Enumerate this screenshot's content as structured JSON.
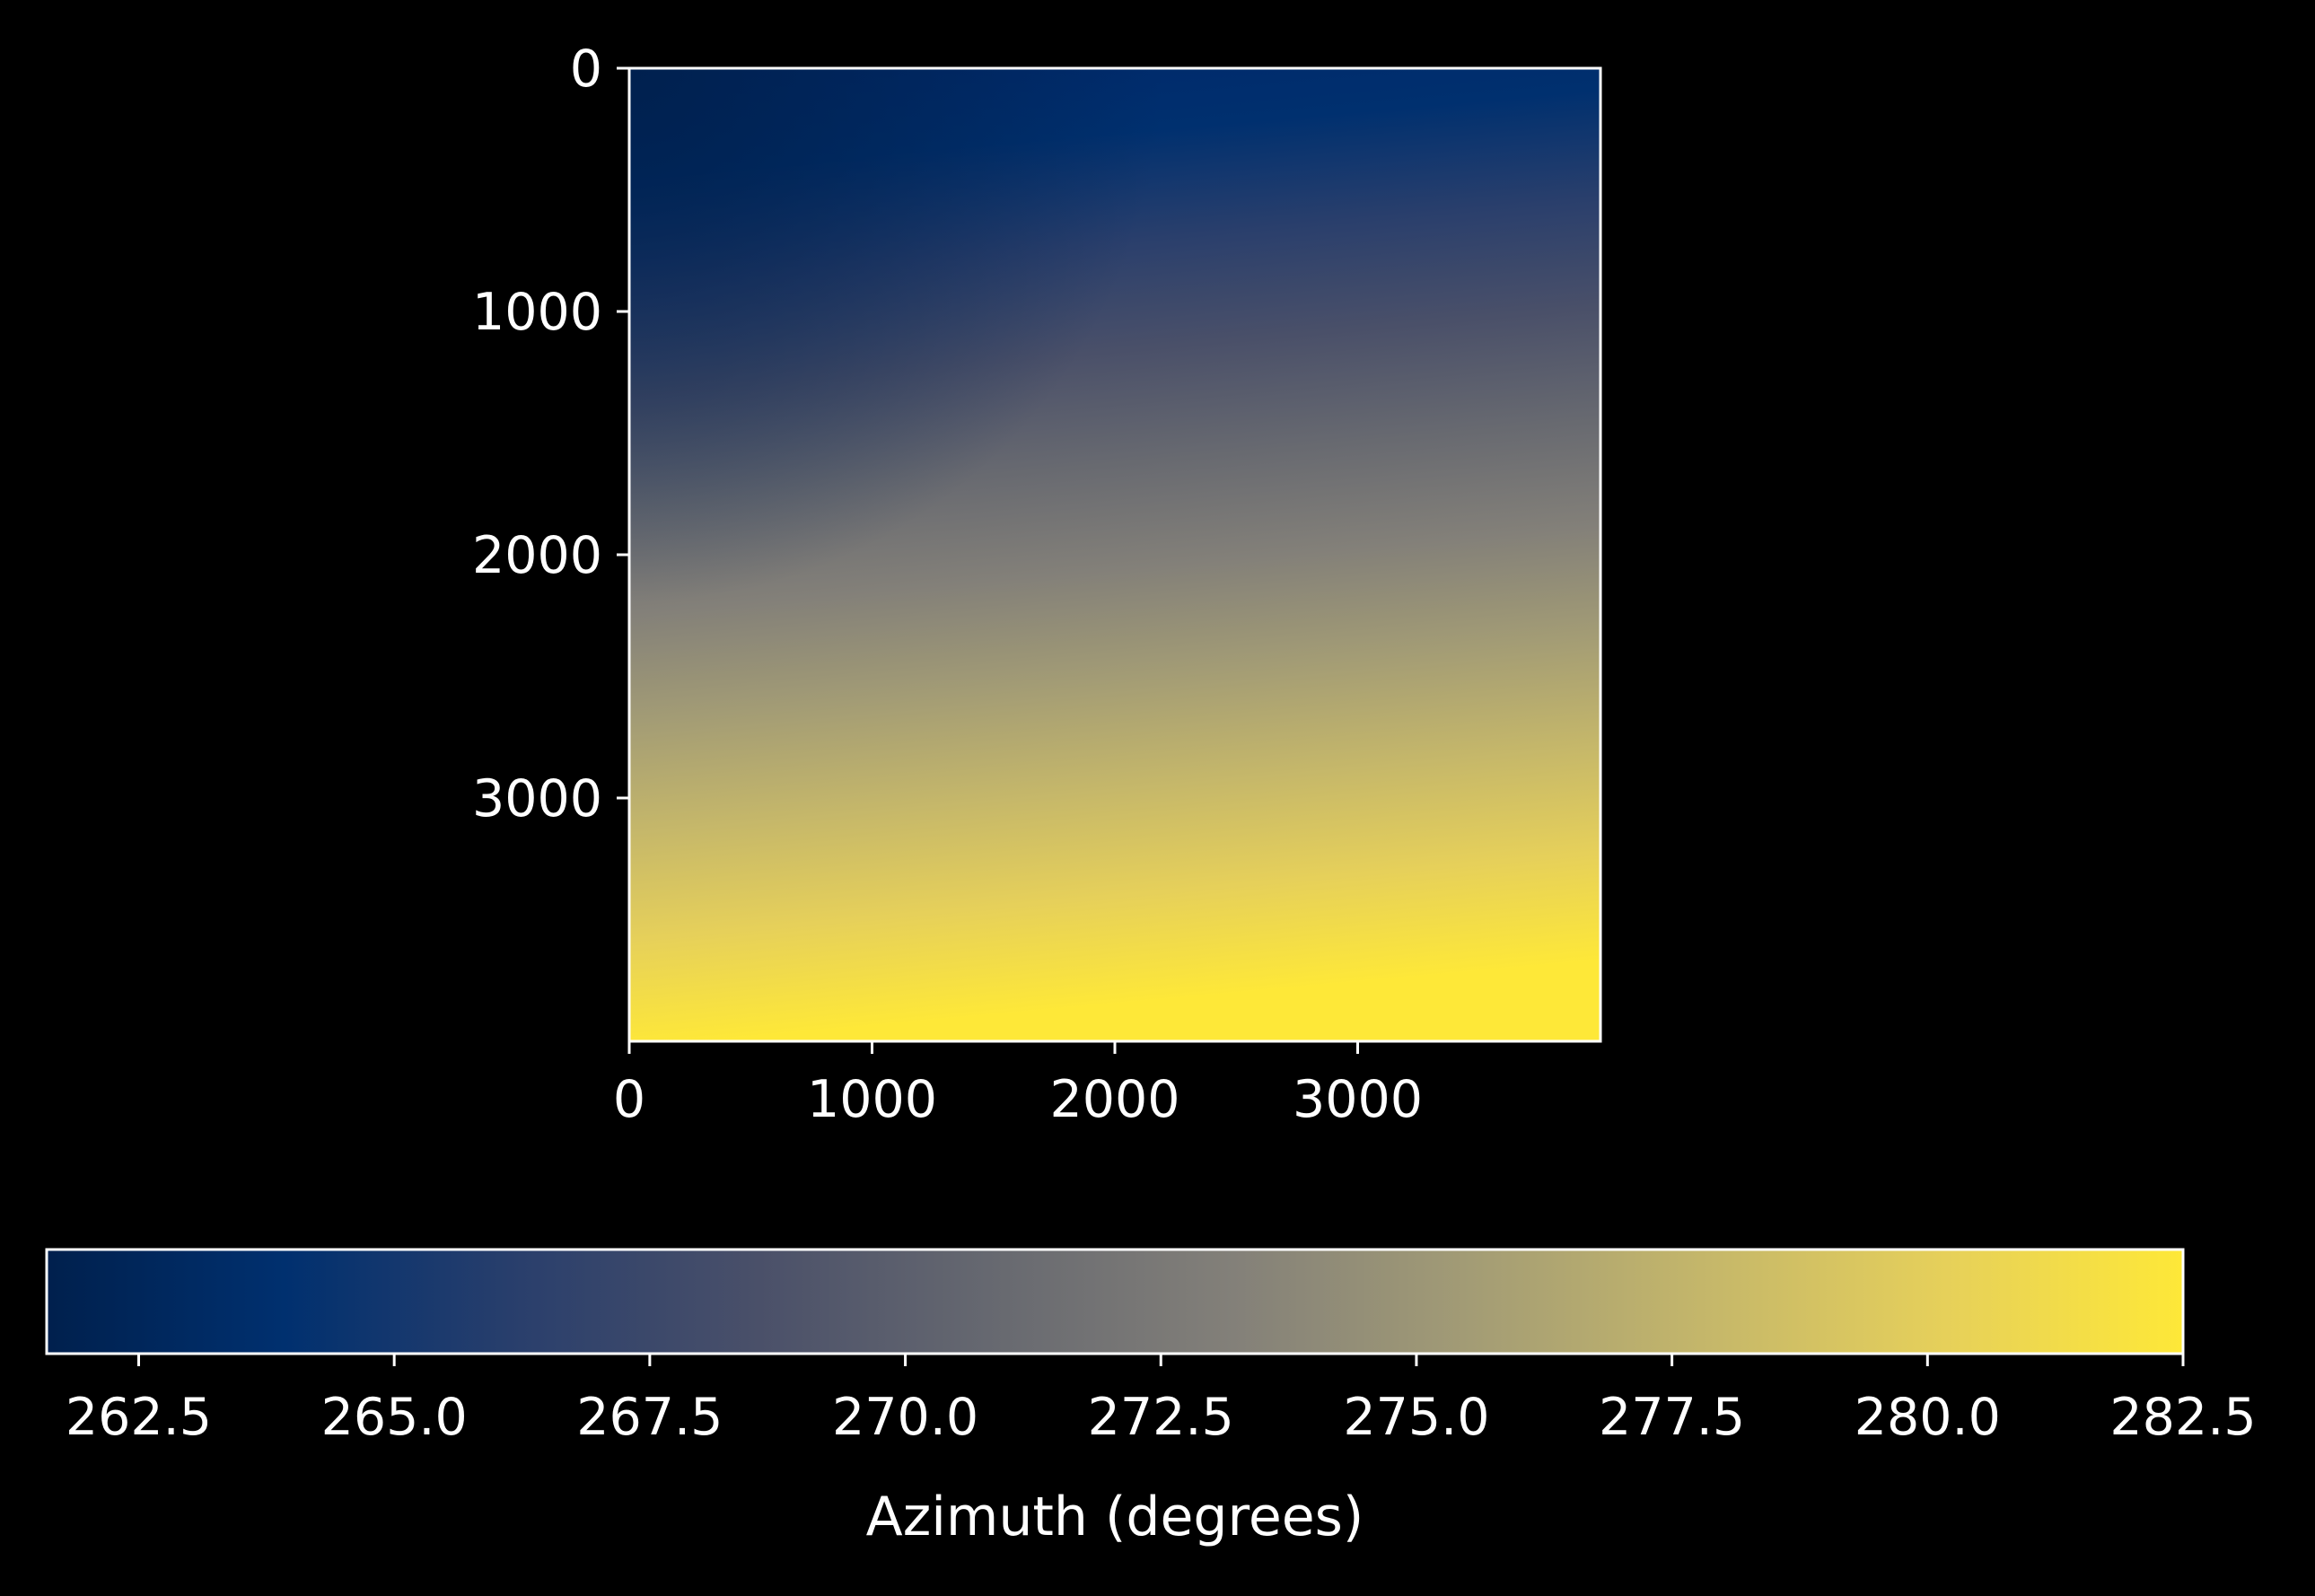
{
  "chart_data": {
    "type": "heatmap",
    "title": "",
    "xlabel": "",
    "ylabel": "",
    "xlim": [
      0,
      4000
    ],
    "ylim": [
      4000,
      0
    ],
    "x_ticks": [
      "0",
      "1000",
      "2000",
      "3000"
    ],
    "y_ticks": [
      "0",
      "1000",
      "2000",
      "3000"
    ],
    "x_tick_values": [
      0,
      1000,
      2000,
      3000
    ],
    "y_tick_values": [
      0,
      1000,
      2000,
      3000
    ],
    "grid": false,
    "colormap": "cividis",
    "colors": [
      "#00204d",
      "#00306f",
      "#2a3f6c",
      "#4a5069",
      "#676970",
      "#838079",
      "#a39c75",
      "#c5b76a",
      "#e6d05a",
      "#fee838"
    ],
    "background": "#000000",
    "color_trend": "values increase from about 262 at the top-left to about 282.5 at the bottom-left; top-right near 267",
    "colorbar": {
      "orientation": "horizontal",
      "placement": "bottom",
      "label": "Azimuth (degrees)",
      "range": [
        261.6,
        282.5
      ],
      "tick_values": [
        262.5,
        265,
        267.5,
        270,
        272.5,
        275,
        277.5,
        280,
        282.5
      ],
      "ticks": [
        "262.5",
        "265.0",
        "267.5",
        "270.0",
        "272.5",
        "275.0",
        "277.5",
        "280.0",
        "282.5"
      ]
    }
  }
}
